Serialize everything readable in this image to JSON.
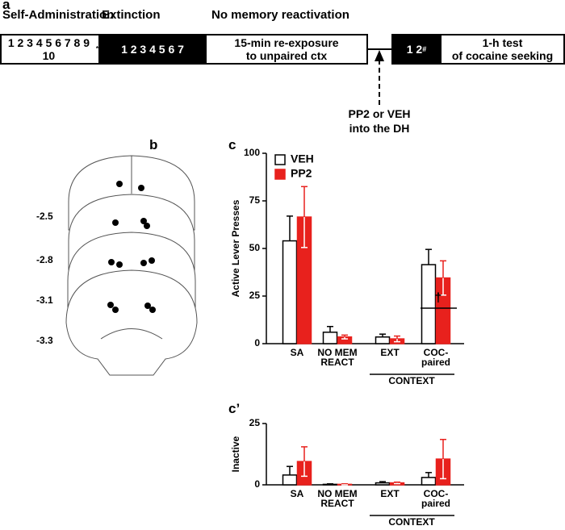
{
  "panel_a": {
    "label": "a",
    "headers": [
      "Self-Administration",
      "Extinction",
      "No memory reactivation"
    ],
    "boxes": [
      {
        "text": "1 2 3 4 5 6 7 8 9 10",
        "sup": "*"
      },
      {
        "text": "1 2 3 4 5 6 7"
      },
      {
        "text": "15-min re-exposure\nto unpaired ctx"
      },
      {
        "text": "1 2",
        "sup": "#"
      },
      {
        "text": "1-h test\nof cocaine seeking"
      }
    ],
    "arrow_label": "PP2 or VEH\ninto the DH"
  },
  "panel_b": {
    "label": "b",
    "levels": [
      "-2.5",
      "-2.8",
      "-3.1",
      "-3.3"
    ]
  },
  "chart_data": [
    {
      "type": "bar",
      "panel": "c",
      "ylabel": "Active Lever Presses",
      "categories": [
        "SA",
        "NO MEM\nREACT",
        "EXT",
        "COC-\npaired"
      ],
      "group_label": "CONTEXT",
      "annotation": "†",
      "series": [
        {
          "name": "VEH",
          "color": "#ffffff",
          "values": [
            54,
            6,
            3.5,
            41.5
          ],
          "errors": [
            13,
            3,
            1.5,
            8
          ]
        },
        {
          "name": "PP2",
          "color": "#e8211d",
          "values": [
            66.5,
            3.5,
            2.5,
            34.5
          ],
          "errors": [
            16,
            1,
            1.5,
            9
          ]
        }
      ],
      "ylim": [
        0,
        100
      ],
      "yticks": [
        0,
        25,
        50,
        75,
        100
      ]
    },
    {
      "type": "bar",
      "panel": "c’",
      "ylabel": "Inactive",
      "categories": [
        "SA",
        "NO MEM\nREACT",
        "EXT",
        "COC-\npaired"
      ],
      "group_label": "CONTEXT",
      "series": [
        {
          "name": "VEH",
          "color": "#ffffff",
          "values": [
            4,
            0.2,
            0.8,
            3
          ],
          "errors": [
            3.5,
            0.2,
            0.5,
            2
          ]
        },
        {
          "name": "PP2",
          "color": "#e8211d",
          "values": [
            9.5,
            0.2,
            0.8,
            10.5
          ],
          "errors": [
            6,
            0.2,
            0.3,
            8
          ]
        }
      ],
      "ylim": [
        0,
        25
      ],
      "yticks": [
        0,
        25
      ]
    }
  ]
}
